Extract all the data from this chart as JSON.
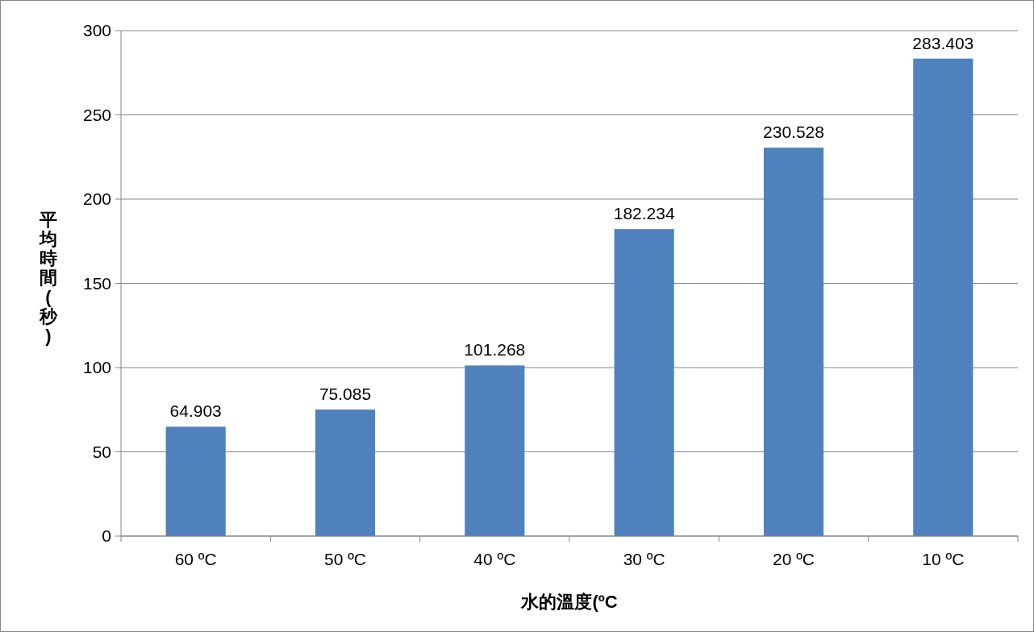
{
  "chart_data": {
    "type": "bar",
    "xlabel": "水的溫度(ºC",
    "ylabel": "平均時間(秒)",
    "categories": [
      "60 ºC",
      "50 ºC",
      "40 ºC",
      "30 ºC",
      "20 ºC",
      "10 ºC"
    ],
    "values": [
      64.903,
      75.085,
      101.268,
      182.234,
      230.528,
      283.403
    ],
    "color": "#4f81bd",
    "ylim": [
      0,
      300
    ],
    "yticks": [
      0,
      50,
      100,
      150,
      200,
      250,
      300
    ],
    "grid": "y",
    "data_labels": true
  }
}
